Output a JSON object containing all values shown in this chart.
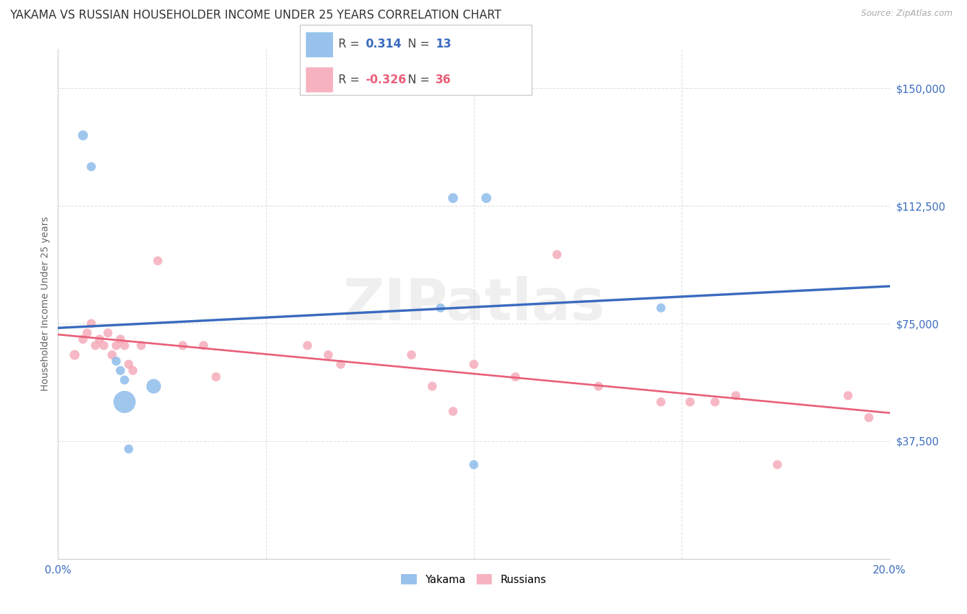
{
  "title": "YAKAMA VS RUSSIAN HOUSEHOLDER INCOME UNDER 25 YEARS CORRELATION CHART",
  "source": "Source: ZipAtlas.com",
  "ylabel": "Householder Income Under 25 years",
  "xlim": [
    0.0,
    0.2
  ],
  "ylim": [
    0,
    162500
  ],
  "yticks": [
    37500,
    75000,
    112500,
    150000
  ],
  "ytick_labels": [
    "$37,500",
    "$75,000",
    "$112,500",
    "$150,000"
  ],
  "background_color": "#ffffff",
  "grid_color": "#e0e0e0",
  "watermark": "ZIPatlas",
  "yakama_color": "#7fb3e8",
  "russian_color": "#f4a0b0",
  "yakama_line_color": "#3a6bbf",
  "russian_line_color": "#e8607a",
  "legend_R_yakama": "0.314",
  "legend_N_yakama": "13",
  "legend_R_russian": "-0.326",
  "legend_N_russian": "36",
  "yakama_x": [
    0.006,
    0.008,
    0.014,
    0.015,
    0.016,
    0.016,
    0.017,
    0.023,
    0.095,
    0.103,
    0.092,
    0.145,
    0.1
  ],
  "yakama_y": [
    135000,
    125000,
    63000,
    60000,
    57000,
    50000,
    35000,
    55000,
    115000,
    115000,
    80000,
    80000,
    30000
  ],
  "yakama_sizes": [
    60,
    50,
    50,
    50,
    50,
    300,
    50,
    130,
    60,
    60,
    50,
    50,
    50
  ],
  "russian_x": [
    0.004,
    0.006,
    0.007,
    0.008,
    0.009,
    0.01,
    0.011,
    0.012,
    0.013,
    0.014,
    0.015,
    0.016,
    0.017,
    0.018,
    0.02,
    0.024,
    0.03,
    0.035,
    0.038,
    0.06,
    0.065,
    0.068,
    0.085,
    0.09,
    0.095,
    0.1,
    0.11,
    0.12,
    0.13,
    0.145,
    0.152,
    0.158,
    0.163,
    0.173,
    0.19,
    0.195
  ],
  "russian_y": [
    65000,
    70000,
    72000,
    75000,
    68000,
    70000,
    68000,
    72000,
    65000,
    68000,
    70000,
    68000,
    62000,
    60000,
    68000,
    95000,
    68000,
    68000,
    58000,
    68000,
    65000,
    62000,
    65000,
    55000,
    47000,
    62000,
    58000,
    97000,
    55000,
    50000,
    50000,
    50000,
    52000,
    30000,
    52000,
    45000
  ],
  "russian_sizes": [
    60,
    50,
    50,
    50,
    50,
    50,
    50,
    50,
    50,
    50,
    50,
    50,
    50,
    50,
    50,
    50,
    50,
    50,
    50,
    50,
    50,
    50,
    50,
    50,
    50,
    50,
    50,
    50,
    50,
    50,
    50,
    50,
    50,
    50,
    50,
    50
  ],
  "title_color": "#333333",
  "title_fontsize": 12,
  "axis_label_color": "#3a6bbf",
  "tick_fontsize": 11,
  "ylabel_fontsize": 10
}
